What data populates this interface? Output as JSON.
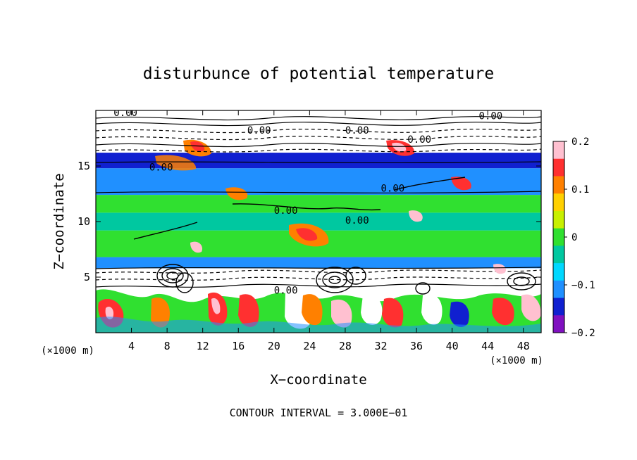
{
  "chart_data": {
    "type": "heatmap",
    "title": "disturbunce of potential temperature",
    "xlabel": "X−coordinate",
    "ylabel": "Z−coordinate",
    "x_unit": "(×1000 m)",
    "y_unit": "(×1000 m)",
    "xlim": [
      0,
      50
    ],
    "ylim": [
      0,
      20
    ],
    "x_ticks": [
      4,
      8,
      12,
      16,
      20,
      24,
      28,
      32,
      36,
      40,
      44,
      48
    ],
    "x_tick_labels": [
      "4",
      "8",
      "12",
      "16",
      "20",
      "24",
      "28",
      "32",
      "36",
      "40",
      "44",
      "48"
    ],
    "y_ticks": [
      5,
      10,
      15
    ],
    "y_tick_labels": [
      "5",
      "10",
      "15"
    ],
    "colorbar": {
      "range": [
        -0.2,
        0.2
      ],
      "ticks": [
        0.2,
        0.1,
        0,
        -0.1,
        -0.2
      ],
      "tick_labels": [
        "0.2",
        "0.1",
        "0",
        "−0.1",
        "−0.2"
      ],
      "colors": [
        "#ffc0d0",
        "#ff3030",
        "#ff8000",
        "#ffd000",
        "#c8f000",
        "#30e030",
        "#00c8a0",
        "#00d8ff",
        "#2090ff",
        "#1020d0",
        "#8010c0"
      ]
    },
    "bands": [
      {
        "z": [
          0,
          3.5
        ],
        "value": "mixed",
        "color": "#ffffff"
      },
      {
        "z": [
          3.5,
          5.8
        ],
        "value": "mixed",
        "color": "#ffffff"
      },
      {
        "z": [
          5.8,
          6.8
        ],
        "value": -0.08,
        "color": "#2090ff"
      },
      {
        "z": [
          6.8,
          9.2
        ],
        "value": 0.0,
        "color": "#30e030"
      },
      {
        "z": [
          9.2,
          10.8
        ],
        "value": -0.05,
        "color": "#00c8a0"
      },
      {
        "z": [
          10.8,
          12.4
        ],
        "value": 0.0,
        "color": "#30e030"
      },
      {
        "z": [
          12.4,
          14.8
        ],
        "value": -0.06,
        "color": "#2090ff"
      },
      {
        "z": [
          14.8,
          16.2
        ],
        "value": -0.2,
        "color": "#1020d0"
      },
      {
        "z": [
          16.2,
          20
        ],
        "value": "mixed",
        "color": "#ffffff"
      }
    ],
    "contour_labels": [
      {
        "x": 2,
        "z": 19.5,
        "text": "0.00"
      },
      {
        "x": 17,
        "z": 17.9,
        "text": "0.00"
      },
      {
        "x": 28,
        "z": 17.9,
        "text": "0.00"
      },
      {
        "x": 35,
        "z": 17.1,
        "text": "0.00"
      },
      {
        "x": 43,
        "z": 19.2,
        "text": "0.00"
      },
      {
        "x": 6,
        "z": 14.6,
        "text": "0.00"
      },
      {
        "x": 32,
        "z": 12.7,
        "text": "0.00"
      },
      {
        "x": 20,
        "z": 10.7,
        "text": "0.00"
      },
      {
        "x": 28,
        "z": 9.8,
        "text": "0.00"
      },
      {
        "x": 20,
        "z": 3.5,
        "text": "0.00"
      }
    ],
    "footer": "CONTOUR INTERVAL = 3.000E−01"
  }
}
